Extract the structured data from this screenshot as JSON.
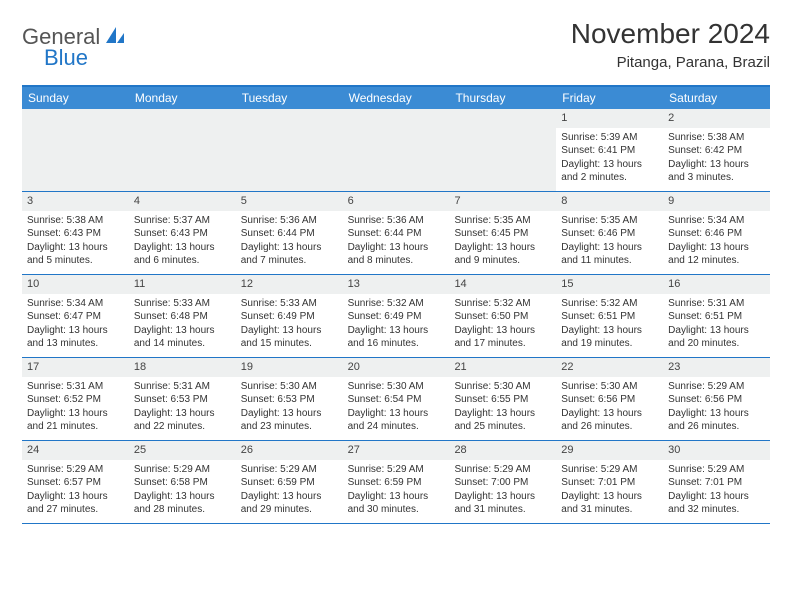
{
  "logo": {
    "part1": "General",
    "part2": "Blue"
  },
  "title": "November 2024",
  "location": "Pitanga, Parana, Brazil",
  "colors": {
    "header_bg": "#3b8bd4",
    "border": "#2176c7",
    "shade": "#eef0f0",
    "text": "#333333"
  },
  "day_names": [
    "Sunday",
    "Monday",
    "Tuesday",
    "Wednesday",
    "Thursday",
    "Friday",
    "Saturday"
  ],
  "weeks": [
    [
      null,
      null,
      null,
      null,
      null,
      {
        "d": "1",
        "sr": "Sunrise: 5:39 AM",
        "ss": "Sunset: 6:41 PM",
        "dl": "Daylight: 13 hours and 2 minutes."
      },
      {
        "d": "2",
        "sr": "Sunrise: 5:38 AM",
        "ss": "Sunset: 6:42 PM",
        "dl": "Daylight: 13 hours and 3 minutes."
      }
    ],
    [
      {
        "d": "3",
        "sr": "Sunrise: 5:38 AM",
        "ss": "Sunset: 6:43 PM",
        "dl": "Daylight: 13 hours and 5 minutes."
      },
      {
        "d": "4",
        "sr": "Sunrise: 5:37 AM",
        "ss": "Sunset: 6:43 PM",
        "dl": "Daylight: 13 hours and 6 minutes."
      },
      {
        "d": "5",
        "sr": "Sunrise: 5:36 AM",
        "ss": "Sunset: 6:44 PM",
        "dl": "Daylight: 13 hours and 7 minutes."
      },
      {
        "d": "6",
        "sr": "Sunrise: 5:36 AM",
        "ss": "Sunset: 6:44 PM",
        "dl": "Daylight: 13 hours and 8 minutes."
      },
      {
        "d": "7",
        "sr": "Sunrise: 5:35 AM",
        "ss": "Sunset: 6:45 PM",
        "dl": "Daylight: 13 hours and 9 minutes."
      },
      {
        "d": "8",
        "sr": "Sunrise: 5:35 AM",
        "ss": "Sunset: 6:46 PM",
        "dl": "Daylight: 13 hours and 11 minutes."
      },
      {
        "d": "9",
        "sr": "Sunrise: 5:34 AM",
        "ss": "Sunset: 6:46 PM",
        "dl": "Daylight: 13 hours and 12 minutes."
      }
    ],
    [
      {
        "d": "10",
        "sr": "Sunrise: 5:34 AM",
        "ss": "Sunset: 6:47 PM",
        "dl": "Daylight: 13 hours and 13 minutes."
      },
      {
        "d": "11",
        "sr": "Sunrise: 5:33 AM",
        "ss": "Sunset: 6:48 PM",
        "dl": "Daylight: 13 hours and 14 minutes."
      },
      {
        "d": "12",
        "sr": "Sunrise: 5:33 AM",
        "ss": "Sunset: 6:49 PM",
        "dl": "Daylight: 13 hours and 15 minutes."
      },
      {
        "d": "13",
        "sr": "Sunrise: 5:32 AM",
        "ss": "Sunset: 6:49 PM",
        "dl": "Daylight: 13 hours and 16 minutes."
      },
      {
        "d": "14",
        "sr": "Sunrise: 5:32 AM",
        "ss": "Sunset: 6:50 PM",
        "dl": "Daylight: 13 hours and 17 minutes."
      },
      {
        "d": "15",
        "sr": "Sunrise: 5:32 AM",
        "ss": "Sunset: 6:51 PM",
        "dl": "Daylight: 13 hours and 19 minutes."
      },
      {
        "d": "16",
        "sr": "Sunrise: 5:31 AM",
        "ss": "Sunset: 6:51 PM",
        "dl": "Daylight: 13 hours and 20 minutes."
      }
    ],
    [
      {
        "d": "17",
        "sr": "Sunrise: 5:31 AM",
        "ss": "Sunset: 6:52 PM",
        "dl": "Daylight: 13 hours and 21 minutes."
      },
      {
        "d": "18",
        "sr": "Sunrise: 5:31 AM",
        "ss": "Sunset: 6:53 PM",
        "dl": "Daylight: 13 hours and 22 minutes."
      },
      {
        "d": "19",
        "sr": "Sunrise: 5:30 AM",
        "ss": "Sunset: 6:53 PM",
        "dl": "Daylight: 13 hours and 23 minutes."
      },
      {
        "d": "20",
        "sr": "Sunrise: 5:30 AM",
        "ss": "Sunset: 6:54 PM",
        "dl": "Daylight: 13 hours and 24 minutes."
      },
      {
        "d": "21",
        "sr": "Sunrise: 5:30 AM",
        "ss": "Sunset: 6:55 PM",
        "dl": "Daylight: 13 hours and 25 minutes."
      },
      {
        "d": "22",
        "sr": "Sunrise: 5:30 AM",
        "ss": "Sunset: 6:56 PM",
        "dl": "Daylight: 13 hours and 26 minutes."
      },
      {
        "d": "23",
        "sr": "Sunrise: 5:29 AM",
        "ss": "Sunset: 6:56 PM",
        "dl": "Daylight: 13 hours and 26 minutes."
      }
    ],
    [
      {
        "d": "24",
        "sr": "Sunrise: 5:29 AM",
        "ss": "Sunset: 6:57 PM",
        "dl": "Daylight: 13 hours and 27 minutes."
      },
      {
        "d": "25",
        "sr": "Sunrise: 5:29 AM",
        "ss": "Sunset: 6:58 PM",
        "dl": "Daylight: 13 hours and 28 minutes."
      },
      {
        "d": "26",
        "sr": "Sunrise: 5:29 AM",
        "ss": "Sunset: 6:59 PM",
        "dl": "Daylight: 13 hours and 29 minutes."
      },
      {
        "d": "27",
        "sr": "Sunrise: 5:29 AM",
        "ss": "Sunset: 6:59 PM",
        "dl": "Daylight: 13 hours and 30 minutes."
      },
      {
        "d": "28",
        "sr": "Sunrise: 5:29 AM",
        "ss": "Sunset: 7:00 PM",
        "dl": "Daylight: 13 hours and 31 minutes."
      },
      {
        "d": "29",
        "sr": "Sunrise: 5:29 AM",
        "ss": "Sunset: 7:01 PM",
        "dl": "Daylight: 13 hours and 31 minutes."
      },
      {
        "d": "30",
        "sr": "Sunrise: 5:29 AM",
        "ss": "Sunset: 7:01 PM",
        "dl": "Daylight: 13 hours and 32 minutes."
      }
    ]
  ]
}
